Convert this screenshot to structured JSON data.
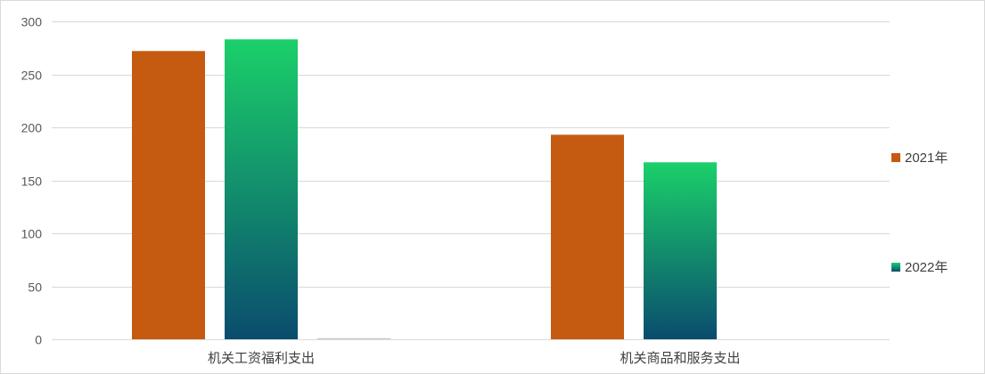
{
  "chart_data": {
    "type": "bar",
    "categories": [
      "机关工资福利支出",
      "机关商品和服务支出"
    ],
    "series": [
      {
        "name": "2021年",
        "values": [
          272,
          193
        ],
        "color": "#C55A11"
      },
      {
        "name": "2022年",
        "values": [
          283,
          167
        ],
        "gradient": [
          "#1BD06A",
          "#0A4C6E"
        ]
      },
      {
        "values": [
          1,
          0
        ],
        "color": "#C9C9C9"
      }
    ],
    "ylim": [
      0,
      300
    ],
    "yticks": [
      0,
      50,
      100,
      150,
      200,
      250,
      300
    ],
    "grid": true,
    "legend": "right",
    "frame_color": "#D9D9D9",
    "grid_color": "#D9D9D9"
  }
}
